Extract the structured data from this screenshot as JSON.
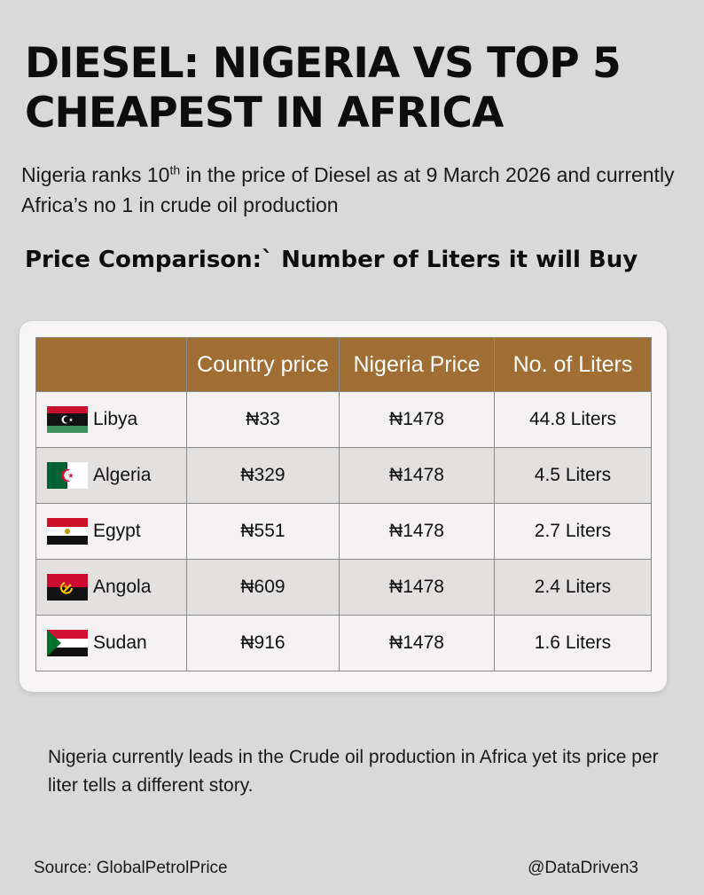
{
  "title": "DIESEL: NIGERIA VS TOP 5 CHEAPEST IN AFRICA",
  "subtitle": {
    "part1": "Nigeria ranks 10",
    "sup": "th",
    "part2": " in the price of Diesel as at 9 March 2026 and currently Africa’s no 1 in crude oil production"
  },
  "section_title": "Price Comparison:` Number of Liters it will Buy",
  "chart_data": {
    "type": "table",
    "columns": [
      "",
      "Country price",
      "Nigeria Price",
      "No. of Liters"
    ],
    "rows": [
      {
        "country": "Libya",
        "flag": "libya-flag-icon",
        "country_price": "₦33",
        "nigeria_price": "₦1478",
        "liters": "44.8 Liters"
      },
      {
        "country": "Algeria",
        "flag": "algeria-flag-icon",
        "country_price": "₦329",
        "nigeria_price": "₦1478",
        "liters": "4.5 Liters"
      },
      {
        "country": "Egypt",
        "flag": "egypt-flag-icon",
        "country_price": "₦551",
        "nigeria_price": "₦1478",
        "liters": "2.7 Liters"
      },
      {
        "country": "Angola",
        "flag": "angola-flag-icon",
        "country_price": "₦609",
        "nigeria_price": "₦1478",
        "liters": "2.4 Liters"
      },
      {
        "country": "Sudan",
        "flag": "sudan-flag-icon",
        "country_price": "₦916",
        "nigeria_price": "₦1478",
        "liters": "1.6 Liters"
      }
    ]
  },
  "footer_note": "Nigeria currently leads in the Crude oil production in Africa yet its price per liter tells a different story.",
  "source": "Source: GlobalPetrolPrice",
  "handle": "@DataDriven3",
  "colors": {
    "background": "#d9d9d9",
    "header_brown": "#a06d33",
    "card": "#f7f5f5"
  }
}
